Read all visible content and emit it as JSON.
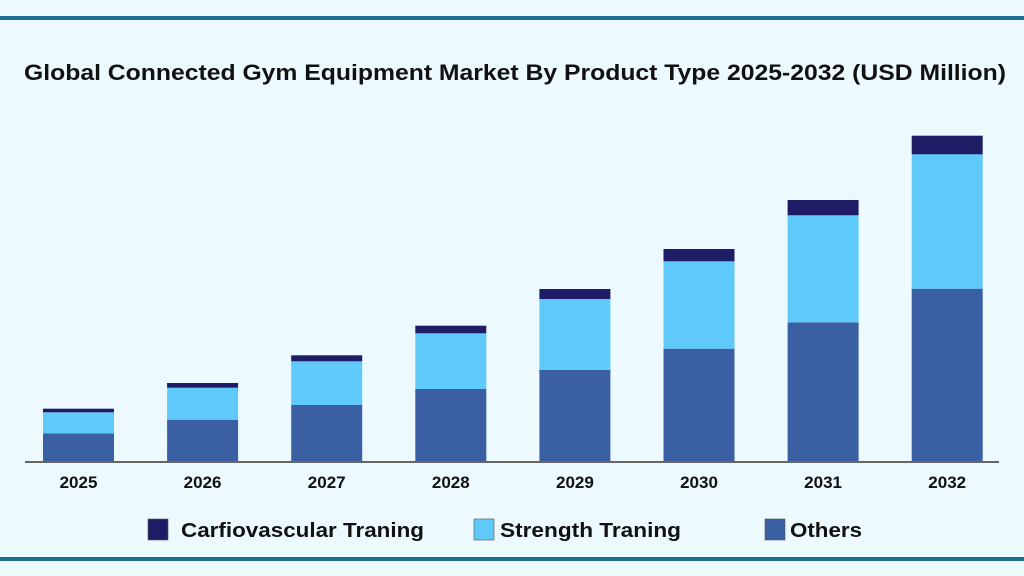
{
  "chart_data": {
    "type": "bar",
    "stacked": true,
    "title": "Global Connected Gym Equipment Market By Product Type 2025-2032 (USD Million)",
    "xlabel": "",
    "ylabel": "",
    "y_axis_shown": false,
    "grid": false,
    "legend_position": "bottom",
    "categories": [
      "2025",
      "2026",
      "2027",
      "2028",
      "2029",
      "2030",
      "2031",
      "2032"
    ],
    "series": [
      {
        "name": "Others",
        "color": "#3a5fa3",
        "values": [
          28.4,
          42.0,
          56.7,
          72.7,
          91.7,
          113.0,
          139.4,
          173.0
        ]
      },
      {
        "name": "Strength Traning",
        "color": "#5fcafa",
        "values": [
          21.0,
          32.0,
          43.7,
          55.7,
          71.0,
          87.4,
          107.0,
          134.4
        ]
      },
      {
        "name": "Carfiovascular Traning",
        "color": "#1f1c66",
        "values": [
          3.6,
          4.7,
          6.0,
          7.6,
          10.0,
          12.3,
          15.3,
          18.6
        ]
      }
    ],
    "legend_order": [
      "Carfiovascular Traning",
      "Strength Traning",
      "Others"
    ],
    "ylim": [
      0,
      326
    ]
  },
  "colors": {
    "background": "#ecf9fe",
    "frame_line": "#1e6e94",
    "axis": "#666666"
  }
}
